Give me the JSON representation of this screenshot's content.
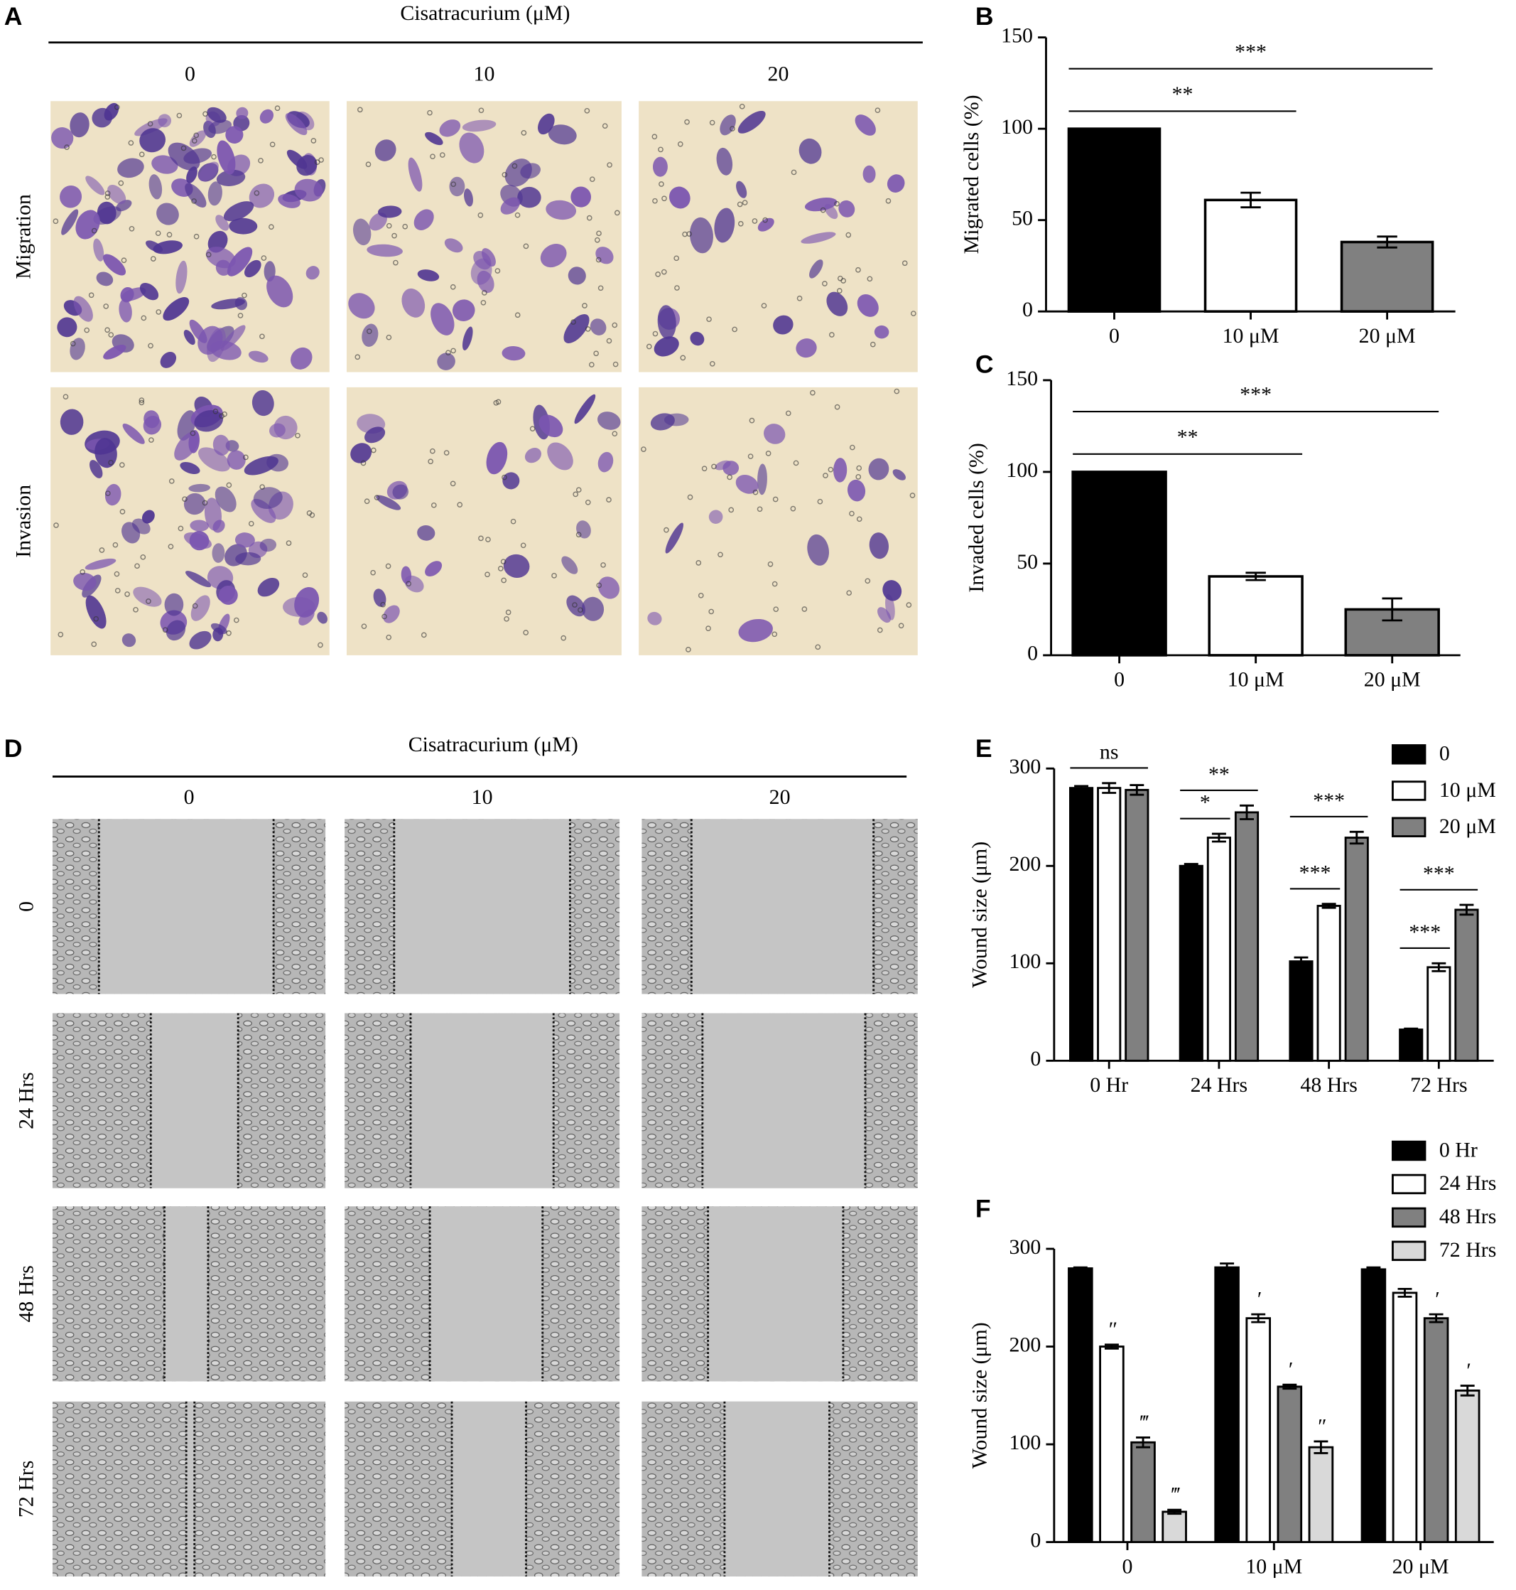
{
  "figure": {
    "panel_a": {
      "label": "A",
      "title": "Cisatracurium (μM)",
      "columns": [
        "0",
        "10",
        "20"
      ],
      "rows": [
        "Migration",
        "Invasion"
      ]
    },
    "panel_d": {
      "label": "D",
      "title": "Cisatracurium (μM)",
      "columns": [
        "0",
        "10",
        "20"
      ],
      "rows": [
        "0",
        "24 Hrs",
        "48 Hrs",
        "72 Hrs"
      ]
    }
  },
  "chart_data": [
    {
      "type": "bar",
      "panel_label": "B",
      "ylabel": "Migrated cells (%)",
      "categories": [
        "0",
        "10 μM",
        "20 μM"
      ],
      "values": [
        100,
        61,
        38
      ],
      "errors": [
        0,
        4,
        3
      ],
      "colors": [
        "#000000",
        "#ffffff",
        "#808080"
      ],
      "ylim": [
        0,
        150
      ],
      "yticks": [
        0,
        50,
        100,
        150
      ],
      "annotations": [
        {
          "text": "***",
          "from": 0,
          "to": 2
        },
        {
          "text": "**",
          "from": 0,
          "to": 1
        }
      ]
    },
    {
      "type": "bar",
      "panel_label": "C",
      "ylabel": "Invaded cells (%)",
      "categories": [
        "0",
        "10 μM",
        "20 μM"
      ],
      "values": [
        100,
        43,
        25
      ],
      "errors": [
        0,
        2,
        6
      ],
      "colors": [
        "#000000",
        "#ffffff",
        "#808080"
      ],
      "ylim": [
        0,
        150
      ],
      "yticks": [
        0,
        50,
        100,
        150
      ],
      "annotations": [
        {
          "text": "***",
          "from": 0,
          "to": 2
        },
        {
          "text": "**",
          "from": 0,
          "to": 1
        }
      ]
    },
    {
      "type": "grouped_bar",
      "panel_label": "E",
      "ylabel": "Wound size (μm)",
      "categories": [
        "0 Hr",
        "24 Hrs",
        "48 Hrs",
        "72 Hrs"
      ],
      "series": [
        {
          "name": "0",
          "color": "#000000",
          "values": [
            280,
            200,
            102,
            32
          ],
          "errors": [
            2,
            2,
            4,
            1
          ]
        },
        {
          "name": "10 μM",
          "color": "#ffffff",
          "values": [
            280,
            229,
            159,
            96
          ],
          "errors": [
            5,
            4,
            2,
            4
          ]
        },
        {
          "name": "20 μM",
          "color": "#808080",
          "values": [
            278,
            255,
            229,
            155
          ],
          "errors": [
            5,
            7,
            6,
            5
          ]
        }
      ],
      "ylim": [
        0,
        300
      ],
      "yticks": [
        0,
        100,
        200,
        300
      ],
      "annotations": [
        {
          "text": "ns",
          "category": 0,
          "from": 0,
          "to": 2
        },
        {
          "text": "**",
          "category": 1,
          "from": 0,
          "to": 2
        },
        {
          "text": "*",
          "category": 1,
          "from": 0,
          "to": 1
        },
        {
          "text": "***",
          "category": 2,
          "from": 0,
          "to": 2
        },
        {
          "text": "***",
          "category": 2,
          "from": 0,
          "to": 1
        },
        {
          "text": "***",
          "category": 3,
          "from": 0,
          "to": 2
        },
        {
          "text": "***",
          "category": 3,
          "from": 0,
          "to": 1
        }
      ]
    },
    {
      "type": "grouped_bar",
      "panel_label": "F",
      "ylabel": "Wound size (μm)",
      "categories": [
        "0",
        "10 μM",
        "20 μM"
      ],
      "series": [
        {
          "name": "0 Hr",
          "color": "#000000",
          "values": [
            280,
            281,
            279
          ],
          "errors": [
            1,
            4,
            2
          ],
          "marks": [
            null,
            null,
            null
          ]
        },
        {
          "name": "24 Hrs",
          "color": "#ffffff",
          "values": [
            200,
            229,
            255
          ],
          "errors": [
            2,
            4,
            4
          ],
          "marks": [
            "″",
            "′",
            null
          ]
        },
        {
          "name": "48 Hrs",
          "color": "#808080",
          "values": [
            102,
            159,
            229
          ],
          "errors": [
            5,
            2,
            4
          ],
          "marks": [
            "‴",
            "′",
            "′"
          ]
        },
        {
          "name": "72 Hrs",
          "color": "#d9d9d9",
          "values": [
            31,
            97,
            155
          ],
          "errors": [
            2,
            6,
            5
          ],
          "marks": [
            "‴",
            "″",
            "′"
          ]
        }
      ],
      "ylim": [
        0,
        300
      ],
      "yticks": [
        0,
        100,
        200,
        300
      ]
    }
  ]
}
